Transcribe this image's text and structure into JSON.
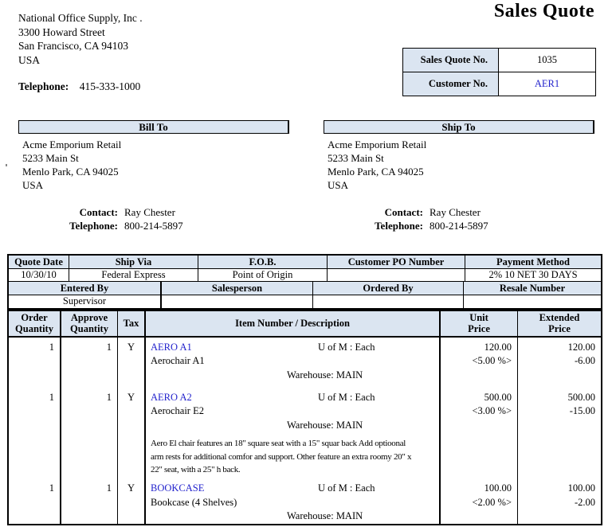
{
  "title": "Sales Quote",
  "company": {
    "name": "National Office Supply, Inc .",
    "addr1": "3300  Howard Street",
    "addr2": "San Francisco, CA 94103",
    "country": "USA",
    "phone_label": "Telephone:",
    "phone": "415-333-1000"
  },
  "quote_info": {
    "no_label": "Sales Quote No.",
    "no_value": "1035",
    "cust_label": "Customer No.",
    "cust_value": "AER1"
  },
  "bill_to": {
    "header": "Bill To",
    "lines": [
      "Acme Emporium Retail",
      "5233  Main St",
      "Menlo Park, CA  94025",
      "USA"
    ],
    "contact_label": "Contact:",
    "contact": "Ray Chester",
    "phone_label": "Telephone:",
    "phone": "800-214-5897"
  },
  "ship_to": {
    "header": "Ship To",
    "lines": [
      "Acme Emporium Retail",
      "5233  Main St",
      "Menlo Park, CA  94025",
      "USA"
    ],
    "contact_label": "Contact:",
    "contact": "Ray Chester",
    "phone_label": "Telephone:",
    "phone": "800-214-5897"
  },
  "details": {
    "row1_headers": [
      "Quote Date",
      "Ship Via",
      "F.O.B.",
      "Customer PO Number",
      "Payment Method"
    ],
    "row1_values": [
      "10/30/10",
      "Federal Express",
      "Point of Origin",
      "",
      "2% 10 NET 30 DAYS"
    ],
    "row2_headers": [
      "Entered By",
      "Salesperson",
      "Ordered By",
      "Resale Number"
    ],
    "row2_values": [
      "Supervisor",
      "",
      "",
      ""
    ]
  },
  "items_header": {
    "order_1": "Order",
    "order_2": "Quantity",
    "approve_1": "Approve",
    "approve_2": "Quantity",
    "tax": "Tax",
    "description": "Item Number / Description",
    "unit_1": "Unit",
    "unit_2": "Price",
    "ext_1": "Extended",
    "ext_2": "Price"
  },
  "items": [
    {
      "order_qty": "1",
      "approve_qty": "1",
      "tax": "Y",
      "code": "AERO A1",
      "uofm": "U of M : Each",
      "name": "Aerochair A1",
      "warehouse": "Warehouse: MAIN",
      "unit_price": "120.00",
      "unit_discount": "<5.00 %>",
      "ext_price": "120.00",
      "ext_discount": "-6.00",
      "comment": ""
    },
    {
      "order_qty": "1",
      "approve_qty": "1",
      "tax": "Y",
      "code": "AERO A2",
      "uofm": "U of M : Each",
      "name": "Aerochair E2",
      "warehouse": "Warehouse: MAIN",
      "unit_price": "500.00",
      "unit_discount": "<3.00 %>",
      "ext_price": "500.00",
      "ext_discount": "-15.00",
      "comment": "Aero El chair features an 18\" square seat with a 15\" squar back  Add optioonal arm rests for additional comfor and support.  Other feature an extra roomy 20\" x 22\" seat, with a 25\" h back."
    },
    {
      "order_qty": "1",
      "approve_qty": "1",
      "tax": "Y",
      "code": "BOOKCASE",
      "uofm": "U of M : Each",
      "name": "Bookcase (4 Shelves)",
      "warehouse": "Warehouse: MAIN",
      "unit_price": "100.00",
      "unit_discount": "<2.00 %>",
      "ext_price": "100.00",
      "ext_discount": "-2.00",
      "comment": ""
    }
  ],
  "colors": {
    "header_fill": "#dbe5f1",
    "link_blue": "#2222cc",
    "border": "#000000",
    "background": "#ffffff"
  }
}
